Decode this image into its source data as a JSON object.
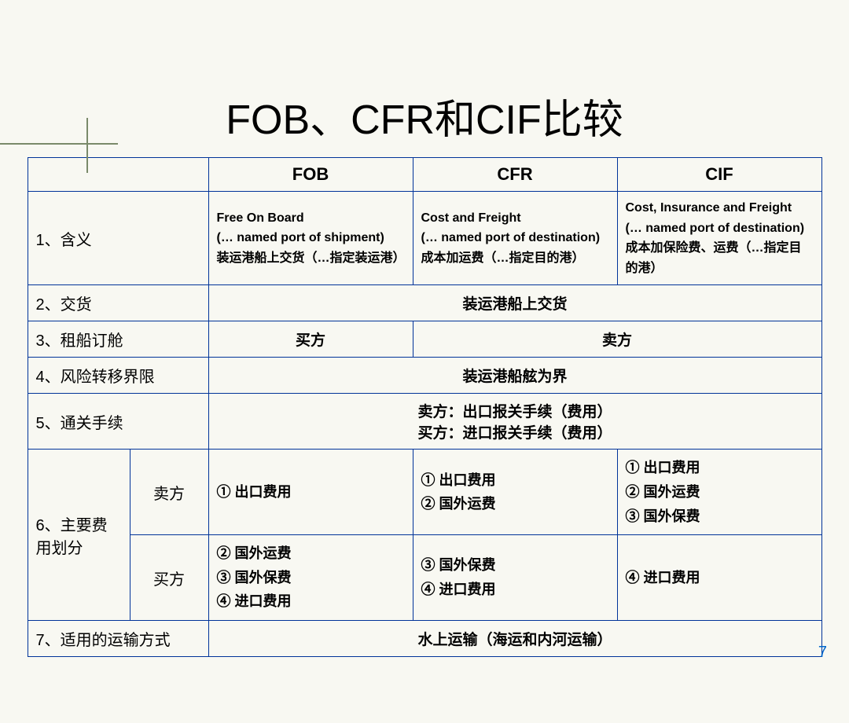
{
  "title": "FOB、CFR和CIF比较",
  "page_number": "7",
  "columns": {
    "fob": "FOB",
    "cfr": "CFR",
    "cif": "CIF"
  },
  "rows": {
    "r1": {
      "label": "1、含义",
      "fob": "Free On Board\n(… named port of shipment)\n装运港船上交货（…指定装运港）",
      "cfr": "Cost and Freight\n(… named port of destination)\n成本加运费（…指定目的港）",
      "cif": "Cost, Insurance and Freight\n(… named port of destination)\n成本加保险费、运费（…指定目的港）"
    },
    "r2": {
      "label": "2、交货",
      "merged": "装运港船上交货"
    },
    "r3": {
      "label": "3、租船订舱",
      "fob": "买方",
      "rest": "卖方"
    },
    "r4": {
      "label": "4、风险转移界限",
      "merged": "装运港船舷为界"
    },
    "r5": {
      "label": "5、通关手续",
      "line1": "卖方：出口报关手续（费用）",
      "line2": "买方：进口报关手续（费用）"
    },
    "r6": {
      "label": "6、主要费用划分",
      "seller_label": "卖方",
      "buyer_label": "买方",
      "seller": {
        "fob": "① 出口费用",
        "cfr": "① 出口费用\n② 国外运费",
        "cif": "① 出口费用\n② 国外运费\n③ 国外保费"
      },
      "buyer": {
        "fob": "② 国外运费\n③ 国外保费\n④ 进口费用",
        "cfr": "③ 国外保费\n④ 进口费用",
        "cif": "④ 进口费用"
      }
    },
    "r7": {
      "label": "7、适用的运输方式",
      "merged": "水上运输（海运和内河运输）"
    }
  }
}
